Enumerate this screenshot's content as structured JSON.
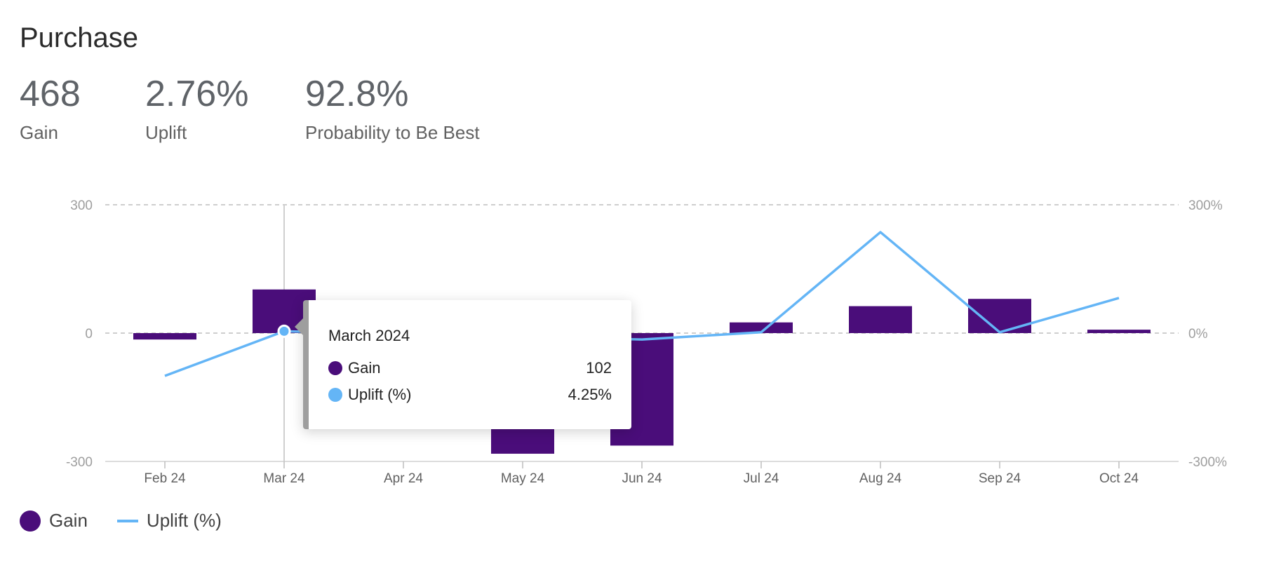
{
  "header": {
    "title": "Purchase"
  },
  "kpis": [
    {
      "value": "468",
      "label": "Gain"
    },
    {
      "value": "2.76%",
      "label": "Uplift"
    },
    {
      "value": "92.8%",
      "label": "Probability to Be Best"
    }
  ],
  "legend": {
    "gain_label": "Gain",
    "uplift_label": "Uplift (%)"
  },
  "tooltip": {
    "title": "March 2024",
    "gain_label": "Gain",
    "gain_value": "102",
    "uplift_label": "Uplift (%)",
    "uplift_value": "4.25%"
  },
  "colors": {
    "gain": "#4a0d7a",
    "uplift": "#64b5f6",
    "grid": "#bdbdbd",
    "cursor": "#cfcfcf"
  },
  "chart_data": {
    "type": "bar",
    "categories": [
      "Feb 24",
      "Mar 24",
      "Apr 24",
      "May 24",
      "Jun 24",
      "Jul 24",
      "Aug 24",
      "Sep 24",
      "Oct 24"
    ],
    "series": [
      {
        "name": "Gain",
        "type": "bar",
        "axis": "left",
        "values": [
          -15,
          102,
          null,
          -282,
          -263,
          25,
          63,
          80,
          8
        ]
      },
      {
        "name": "Uplift (%)",
        "type": "line",
        "axis": "right",
        "values": [
          -100,
          4.25,
          null,
          null,
          -15,
          2,
          236,
          2,
          82
        ]
      }
    ],
    "ylim_left": [
      -300,
      300
    ],
    "ylim_right": [
      -300,
      300
    ],
    "yticks_left": [
      "300",
      "0",
      "-300"
    ],
    "yticks_right": [
      "300%",
      "0%",
      "-300%"
    ],
    "grid": true,
    "legend_position": "bottom-left",
    "highlight_category": "Mar 24"
  }
}
